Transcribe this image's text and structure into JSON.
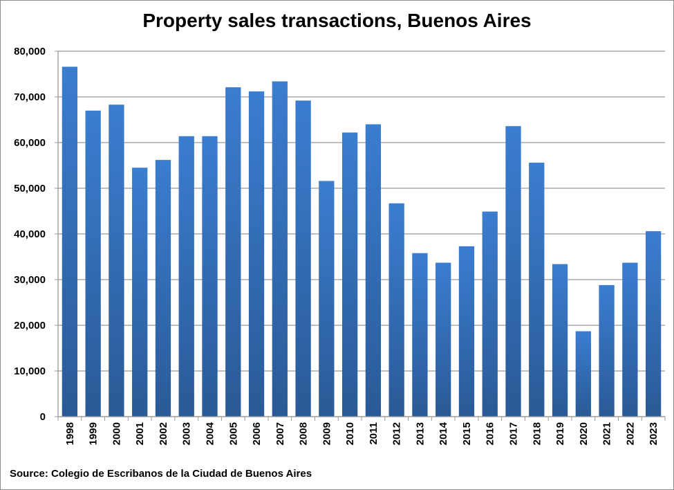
{
  "chart_data": {
    "type": "bar",
    "title": "Property sales transactions, Buenos Aires",
    "source": "Source: Colegio de Escribanos de la Ciudad de Buenos Aires",
    "xlabel": "",
    "ylabel": "",
    "ylim": [
      0,
      80000
    ],
    "yticks": [
      "0",
      "10,000",
      "20,000",
      "30,000",
      "40,000",
      "50,000",
      "60,000",
      "70,000",
      "80,000"
    ],
    "grid": true,
    "categories": [
      "1998",
      "1999",
      "2000",
      "2001",
      "2002",
      "2003",
      "2004",
      "2005",
      "2006",
      "2007",
      "2008",
      "2009",
      "2010",
      "2011",
      "2012",
      "2013",
      "2014",
      "2015",
      "2016",
      "2017",
      "2018",
      "2019",
      "2020",
      "2021",
      "2022",
      "2023"
    ],
    "values": [
      76600,
      67000,
      68300,
      54500,
      56200,
      61400,
      61400,
      72100,
      71200,
      73400,
      69200,
      51600,
      62200,
      64000,
      46700,
      35800,
      33700,
      37300,
      44900,
      63600,
      55600,
      33400,
      18700,
      28800,
      33700,
      40600
    ],
    "colors": {
      "bar_top": "#3b7dd0",
      "bar_bottom": "#2a5a96",
      "grid": "#999999"
    }
  }
}
